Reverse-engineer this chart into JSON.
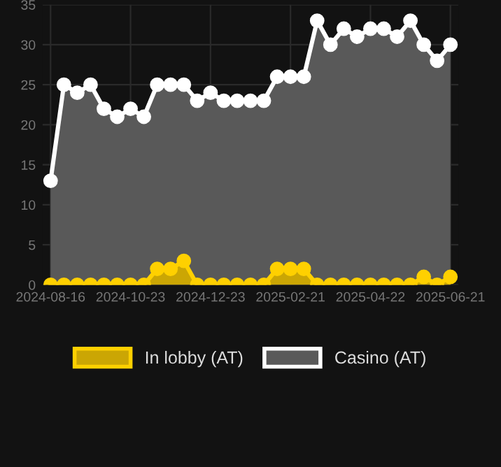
{
  "chart_data": {
    "type": "area",
    "categories": [
      "2024-08-16",
      null,
      null,
      null,
      null,
      null,
      "2024-10-23",
      null,
      null,
      null,
      null,
      null,
      "2024-12-23",
      null,
      null,
      null,
      null,
      null,
      "2025-02-21",
      null,
      null,
      null,
      null,
      null,
      "2025-04-22",
      null,
      null,
      null,
      null,
      null,
      "2025-06-21"
    ],
    "series": [
      {
        "name": "In lobby (AT)",
        "color": "#ffd000",
        "values": [
          0,
          0,
          0,
          0,
          0,
          0,
          0,
          0,
          2,
          2,
          3,
          0,
          0,
          0,
          0,
          0,
          0,
          2,
          2,
          2,
          0,
          0,
          0,
          0,
          0,
          0,
          0,
          0,
          1,
          0,
          1
        ]
      },
      {
        "name": "Casino (AT)",
        "color": "#ffffff",
        "values": [
          13,
          25,
          24,
          25,
          22,
          21,
          22,
          21,
          25,
          25,
          25,
          23,
          24,
          23,
          23,
          23,
          23,
          26,
          26,
          26,
          33,
          30,
          32,
          31,
          32,
          32,
          31,
          33,
          30,
          28,
          30
        ]
      }
    ],
    "ylim": [
      0,
      35
    ],
    "yticks": [
      0,
      5,
      10,
      15,
      20,
      25,
      30,
      35
    ],
    "grid": true,
    "legend": "bottom",
    "marker": "circle",
    "line_style": "solid"
  }
}
